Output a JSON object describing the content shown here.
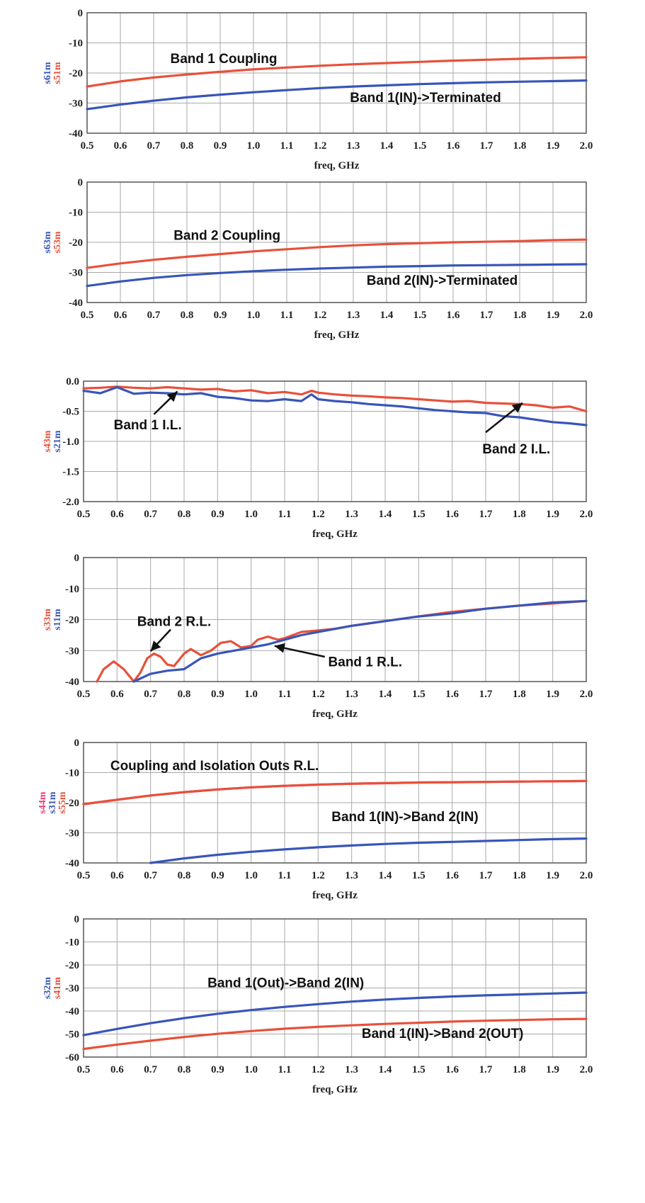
{
  "colors": {
    "red": "#e8503a",
    "blue": "#3855b8",
    "pink": "#e83e78",
    "grid": "#a9a9a9",
    "frame": "#555555"
  },
  "chart_data": [
    {
      "type": "line",
      "xlabel": "freq, GHz",
      "ylabels": [
        {
          "text": "s61m",
          "color": "blue"
        },
        {
          "text": "s51m",
          "color": "red"
        }
      ],
      "xlim": [
        0.5,
        2.0
      ],
      "ylim": [
        -40,
        0
      ],
      "xticks": [
        "0.5",
        "0.6",
        "0.7",
        "0.8",
        "0.9",
        "1.0",
        "1.1",
        "1.2",
        "1.3",
        "1.4",
        "1.5",
        "1.6",
        "1.7",
        "1.8",
        "1.9",
        "2.0"
      ],
      "yticks": [
        "0",
        "-10",
        "-20",
        "-30",
        "-40"
      ],
      "grid": true,
      "series": [
        {
          "color": "red",
          "x": [
            0.5,
            0.6,
            0.7,
            0.8,
            0.9,
            1.0,
            1.1,
            1.2,
            1.3,
            1.4,
            1.5,
            1.6,
            1.7,
            1.8,
            1.9,
            2.0
          ],
          "y": [
            -24.5,
            -22.8,
            -21.5,
            -20.5,
            -19.6,
            -18.8,
            -18.2,
            -17.6,
            -17.1,
            -16.7,
            -16.3,
            -15.9,
            -15.6,
            -15.3,
            -15.0,
            -14.8
          ]
        },
        {
          "color": "blue",
          "x": [
            0.5,
            0.6,
            0.7,
            0.8,
            0.9,
            1.0,
            1.1,
            1.2,
            1.3,
            1.4,
            1.5,
            1.6,
            1.7,
            1.8,
            1.9,
            2.0
          ],
          "y": [
            -32.0,
            -30.5,
            -29.2,
            -28.1,
            -27.2,
            -26.4,
            -25.7,
            -25.0,
            -24.5,
            -24.1,
            -23.7,
            -23.4,
            -23.1,
            -22.9,
            -22.7,
            -22.5
          ]
        }
      ],
      "annotations": [
        {
          "text": "Band 1 Coupling",
          "x": 0.75,
          "y": -15
        },
        {
          "text": "Band 1(IN)->Terminated",
          "x": 1.29,
          "y": -28
        }
      ]
    },
    {
      "type": "line",
      "xlabel": "freq, GHz",
      "ylabels": [
        {
          "text": "s63m",
          "color": "blue"
        },
        {
          "text": "s53m",
          "color": "red"
        }
      ],
      "xlim": [
        0.5,
        2.0
      ],
      "ylim": [
        -40,
        0
      ],
      "xticks": [
        "0.5",
        "0.6",
        "0.7",
        "0.8",
        "0.9",
        "1.0",
        "1.1",
        "1.2",
        "1.3",
        "1.4",
        "1.5",
        "1.6",
        "1.7",
        "1.8",
        "1.9",
        "2.0"
      ],
      "yticks": [
        "0",
        "-10",
        "-20",
        "-30",
        "-40"
      ],
      "grid": true,
      "series": [
        {
          "color": "red",
          "x": [
            0.5,
            0.6,
            0.7,
            0.8,
            0.9,
            1.0,
            1.1,
            1.2,
            1.3,
            1.4,
            1.5,
            1.6,
            1.7,
            1.8,
            1.9,
            2.0
          ],
          "y": [
            -28.5,
            -27.0,
            -25.8,
            -24.8,
            -23.9,
            -23.0,
            -22.3,
            -21.6,
            -21.0,
            -20.6,
            -20.3,
            -20.0,
            -19.8,
            -19.6,
            -19.3,
            -19.1
          ]
        },
        {
          "color": "blue",
          "x": [
            0.5,
            0.6,
            0.7,
            0.8,
            0.9,
            1.0,
            1.1,
            1.2,
            1.3,
            1.4,
            1.5,
            1.6,
            1.7,
            1.8,
            1.9,
            2.0
          ],
          "y": [
            -34.5,
            -33.0,
            -31.8,
            -30.9,
            -30.2,
            -29.6,
            -29.1,
            -28.7,
            -28.4,
            -28.1,
            -27.9,
            -27.7,
            -27.6,
            -27.5,
            -27.4,
            -27.3
          ]
        }
      ],
      "annotations": [
        {
          "text": "Band 2 Coupling",
          "x": 0.76,
          "y": -17.5
        },
        {
          "text": "Band 2(IN)->Terminated",
          "x": 1.34,
          "y": -32.5
        }
      ]
    },
    {
      "type": "line",
      "xlabel": "freq, GHz",
      "ylabels": [
        {
          "text": "s43m",
          "color": "red"
        },
        {
          "text": "s21m",
          "color": "blue"
        }
      ],
      "xlim": [
        0.5,
        2.0
      ],
      "ylim": [
        -2.0,
        0.0
      ],
      "xticks": [
        "0.5",
        "0.6",
        "0.7",
        "0.8",
        "0.9",
        "1.0",
        "1.1",
        "1.2",
        "1.3",
        "1.4",
        "1.5",
        "1.6",
        "1.7",
        "1.8",
        "1.9",
        "2.0"
      ],
      "yticks": [
        "0.0",
        "-0.5",
        "-1.0",
        "-1.5",
        "-2.0"
      ],
      "grid": true,
      "series": [
        {
          "color": "red",
          "x": [
            0.5,
            0.55,
            0.6,
            0.65,
            0.7,
            0.75,
            0.8,
            0.85,
            0.9,
            0.95,
            1.0,
            1.05,
            1.1,
            1.15,
            1.18,
            1.2,
            1.25,
            1.3,
            1.35,
            1.4,
            1.45,
            1.5,
            1.55,
            1.6,
            1.65,
            1.7,
            1.75,
            1.8,
            1.85,
            1.9,
            1.95,
            2.0
          ],
          "y": [
            -0.12,
            -0.11,
            -0.09,
            -0.11,
            -0.12,
            -0.1,
            -0.12,
            -0.14,
            -0.13,
            -0.17,
            -0.15,
            -0.2,
            -0.18,
            -0.22,
            -0.16,
            -0.19,
            -0.22,
            -0.24,
            -0.25,
            -0.27,
            -0.28,
            -0.3,
            -0.32,
            -0.34,
            -0.33,
            -0.36,
            -0.37,
            -0.38,
            -0.4,
            -0.44,
            -0.42,
            -0.5
          ]
        },
        {
          "color": "blue",
          "x": [
            0.5,
            0.55,
            0.6,
            0.65,
            0.7,
            0.75,
            0.8,
            0.85,
            0.9,
            0.95,
            1.0,
            1.05,
            1.1,
            1.15,
            1.18,
            1.2,
            1.25,
            1.3,
            1.35,
            1.4,
            1.45,
            1.5,
            1.55,
            1.6,
            1.65,
            1.7,
            1.75,
            1.8,
            1.85,
            1.9,
            1.95,
            2.0
          ],
          "y": [
            -0.16,
            -0.2,
            -0.1,
            -0.21,
            -0.19,
            -0.2,
            -0.22,
            -0.2,
            -0.26,
            -0.28,
            -0.32,
            -0.33,
            -0.3,
            -0.33,
            -0.22,
            -0.3,
            -0.33,
            -0.35,
            -0.38,
            -0.4,
            -0.42,
            -0.45,
            -0.48,
            -0.5,
            -0.52,
            -0.53,
            -0.58,
            -0.6,
            -0.64,
            -0.68,
            -0.7,
            -0.73
          ]
        }
      ],
      "annotations": [
        {
          "text": "Band 1 I.L.",
          "x": 0.59,
          "y": -0.72
        },
        {
          "text": "Band 2 I.L.",
          "x": 1.69,
          "y": -1.12
        }
      ],
      "arrows": [
        {
          "from": [
            0.71,
            -0.55
          ],
          "to": [
            0.78,
            -0.17
          ]
        },
        {
          "from": [
            1.7,
            -0.85
          ],
          "to": [
            1.81,
            -0.36
          ]
        }
      ]
    },
    {
      "type": "line",
      "xlabel": "freq, GHz",
      "ylabels": [
        {
          "text": "s33m",
          "color": "red"
        },
        {
          "text": "s11m",
          "color": "blue"
        }
      ],
      "xlim": [
        0.5,
        2.0
      ],
      "ylim": [
        -40,
        0
      ],
      "xticks": [
        "0.5",
        "0.6",
        "0.7",
        "0.8",
        "0.9",
        "1.0",
        "1.1",
        "1.2",
        "1.3",
        "1.4",
        "1.5",
        "1.6",
        "1.7",
        "1.8",
        "1.9",
        "2.0"
      ],
      "yticks": [
        "0",
        "-10",
        "-20",
        "-30",
        "-40"
      ],
      "grid": true,
      "series": [
        {
          "color": "red",
          "x": [
            0.54,
            0.56,
            0.59,
            0.62,
            0.65,
            0.67,
            0.69,
            0.71,
            0.73,
            0.75,
            0.77,
            0.8,
            0.82,
            0.85,
            0.88,
            0.91,
            0.94,
            0.97,
            1.0,
            1.02,
            1.05,
            1.08,
            1.1,
            1.15,
            1.2,
            1.25,
            1.3,
            1.4,
            1.5,
            1.6,
            1.7,
            1.8,
            1.9,
            2.0
          ],
          "y": [
            -40,
            -36,
            -33.5,
            -36,
            -40,
            -37,
            -32.5,
            -31,
            -32,
            -34.5,
            -35,
            -31,
            -29.5,
            -31.5,
            -30,
            -27.5,
            -27,
            -29,
            -28.5,
            -26.5,
            -25.5,
            -26.5,
            -26,
            -24,
            -23.5,
            -23,
            -22,
            -20.5,
            -19,
            -17.5,
            -16.5,
            -15.5,
            -14.8,
            -14
          ]
        },
        {
          "color": "blue",
          "x": [
            0.65,
            0.7,
            0.75,
            0.8,
            0.85,
            0.9,
            0.95,
            1.0,
            1.05,
            1.1,
            1.15,
            1.2,
            1.3,
            1.4,
            1.5,
            1.6,
            1.7,
            1.8,
            1.9,
            2.0
          ],
          "y": [
            -40,
            -37.5,
            -36.5,
            -36,
            -32.5,
            -31,
            -30,
            -29,
            -28,
            -26.5,
            -25,
            -24,
            -22,
            -20.5,
            -19,
            -18,
            -16.5,
            -15.5,
            -14.5,
            -14
          ]
        }
      ],
      "annotations": [
        {
          "text": "Band 2 R.L.",
          "x": 0.66,
          "y": -20.5
        },
        {
          "text": "Band 1 R.L.",
          "x": 1.23,
          "y": -33.5
        }
      ],
      "arrows": [
        {
          "from": [
            0.76,
            -23.2
          ],
          "to": [
            0.7,
            -30.2
          ]
        },
        {
          "from": [
            1.22,
            -32.0
          ],
          "to": [
            1.07,
            -28.5
          ]
        }
      ]
    },
    {
      "type": "line",
      "xlabel": "freq, GHz",
      "ylabels": [
        {
          "text": "s44m",
          "color": "pink"
        },
        {
          "text": "s31m",
          "color": "blue"
        },
        {
          "text": "s55m",
          "color": "red"
        }
      ],
      "xlim": [
        0.5,
        2.0
      ],
      "ylim": [
        -40,
        0
      ],
      "xticks": [
        "0.5",
        "0.6",
        "0.7",
        "0.8",
        "0.9",
        "1.0",
        "1.1",
        "1.2",
        "1.3",
        "1.4",
        "1.5",
        "1.6",
        "1.7",
        "1.8",
        "1.9",
        "2.0"
      ],
      "yticks": [
        "0",
        "-10",
        "-20",
        "-30",
        "-40"
      ],
      "grid": true,
      "series": [
        {
          "color": "pink",
          "x": [
            0.5,
            0.6,
            0.7,
            0.8,
            0.9,
            1.0,
            1.1,
            1.2,
            1.3,
            1.4,
            1.5,
            1.6,
            1.7,
            1.8,
            1.9,
            2.0
          ],
          "y": [
            -20.5,
            -19,
            -17.6,
            -16.5,
            -15.6,
            -14.9,
            -14.4,
            -14,
            -13.7,
            -13.5,
            -13.3,
            -13.2,
            -13.1,
            -13,
            -12.9,
            -12.8
          ]
        },
        {
          "color": "red",
          "x": [
            0.5,
            0.6,
            0.7,
            0.8,
            0.9,
            1.0,
            1.1,
            1.2,
            1.3,
            1.4,
            1.5,
            1.6,
            1.7,
            1.8,
            1.9,
            2.0
          ],
          "y": [
            -20.5,
            -19,
            -17.6,
            -16.5,
            -15.6,
            -14.9,
            -14.4,
            -14,
            -13.7,
            -13.5,
            -13.3,
            -13.2,
            -13.1,
            -13,
            -12.9,
            -12.8
          ]
        },
        {
          "color": "blue",
          "x": [
            0.7,
            0.8,
            0.9,
            1.0,
            1.1,
            1.2,
            1.3,
            1.4,
            1.5,
            1.6,
            1.7,
            1.8,
            1.9,
            2.0
          ],
          "y": [
            -40,
            -38.5,
            -37.3,
            -36.3,
            -35.5,
            -34.8,
            -34.2,
            -33.7,
            -33.3,
            -33,
            -32.7,
            -32.4,
            -32.1,
            -31.9
          ]
        }
      ],
      "annotations": [
        {
          "text": "Coupling and Isolation Outs R.L.",
          "x": 0.58,
          "y": -7.5
        },
        {
          "text": "Band 1(IN)->Band 2(IN)",
          "x": 1.24,
          "y": -24.5
        }
      ]
    },
    {
      "type": "line",
      "xlabel": "freq, GHz",
      "ylabels": [
        {
          "text": "s32m",
          "color": "blue"
        },
        {
          "text": "s41m",
          "color": "red"
        }
      ],
      "xlim": [
        0.5,
        2.0
      ],
      "ylim": [
        -60,
        0
      ],
      "xticks": [
        "0.5",
        "0.6",
        "0.7",
        "0.8",
        "0.9",
        "1.0",
        "1.1",
        "1.2",
        "1.3",
        "1.4",
        "1.5",
        "1.6",
        "1.7",
        "1.8",
        "1.9",
        "2.0"
      ],
      "yticks": [
        "0",
        "-10",
        "-20",
        "-30",
        "-40",
        "-50",
        "-60"
      ],
      "grid": true,
      "series": [
        {
          "color": "blue",
          "x": [
            0.5,
            0.6,
            0.7,
            0.8,
            0.9,
            1.0,
            1.1,
            1.2,
            1.3,
            1.4,
            1.5,
            1.6,
            1.7,
            1.8,
            1.9,
            2.0
          ],
          "y": [
            -50.5,
            -47.8,
            -45.3,
            -43.1,
            -41.2,
            -39.6,
            -38.2,
            -37,
            -35.9,
            -35,
            -34.3,
            -33.7,
            -33.2,
            -32.8,
            -32.4,
            -32
          ]
        },
        {
          "color": "red",
          "x": [
            0.5,
            0.6,
            0.7,
            0.8,
            0.9,
            1.0,
            1.1,
            1.2,
            1.3,
            1.4,
            1.5,
            1.6,
            1.7,
            1.8,
            1.9,
            2.0
          ],
          "y": [
            -56.5,
            -54.6,
            -52.9,
            -51.3,
            -49.9,
            -48.7,
            -47.7,
            -46.9,
            -46.2,
            -45.6,
            -45.1,
            -44.6,
            -44.2,
            -43.9,
            -43.6,
            -43.4
          ]
        }
      ],
      "annotations": [
        {
          "text": "Band 1(Out)->Band 2(IN)",
          "x": 0.87,
          "y": -27.5
        },
        {
          "text": "Band 1(IN)->Band 2(OUT)",
          "x": 1.33,
          "y": -49.5
        }
      ]
    }
  ]
}
